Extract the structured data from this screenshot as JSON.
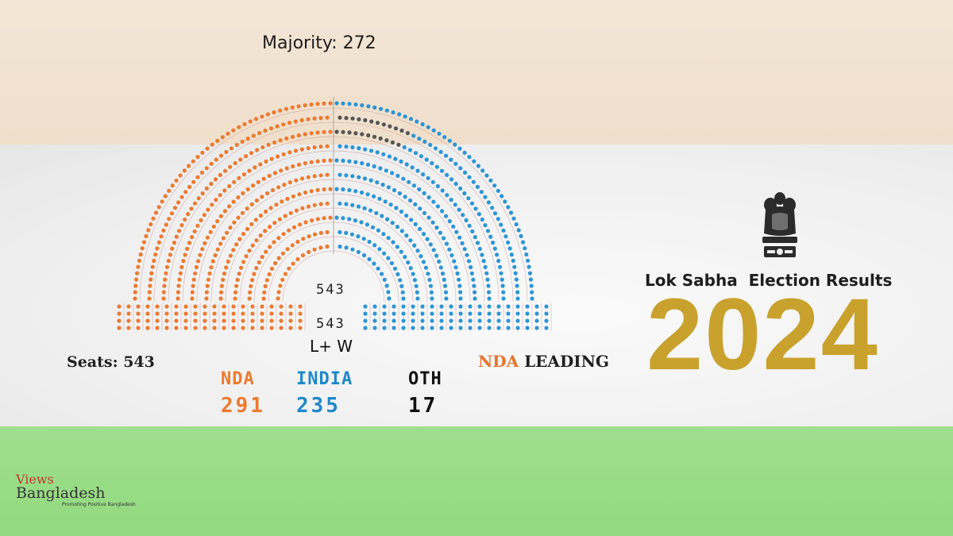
{
  "majority_label": "Majority: 272",
  "hemicycle": {
    "total_seats": 543,
    "center_count_top": "543",
    "center_count_bottom": "543",
    "center_label": "L+ W",
    "left_color": "#ec7a30",
    "right_color": "#2c95d6",
    "oth_color": "#555555"
  },
  "seats_label": "Seats: 543",
  "leading": {
    "party": "NDA",
    "text": " LEADING"
  },
  "parties": [
    {
      "label": "NDA",
      "seats": "291",
      "color": "#ec7a30"
    },
    {
      "label": "INDIA",
      "seats": "235",
      "color": "#1e88c9"
    },
    {
      "label": "OTH",
      "seats": "17",
      "color": "#111111"
    }
  ],
  "title": "Lok Sabha  Election Results",
  "year": "2024",
  "brand": {
    "line1": "Views",
    "line2": "Bangladesh",
    "tagline": "Promoting Positive Bangladesh"
  },
  "colors": {
    "saffron_band": "#f3e6d6",
    "white_band": "#f2f2f2",
    "green_band": "#9fdf8e",
    "gold": "#c9a22e"
  }
}
